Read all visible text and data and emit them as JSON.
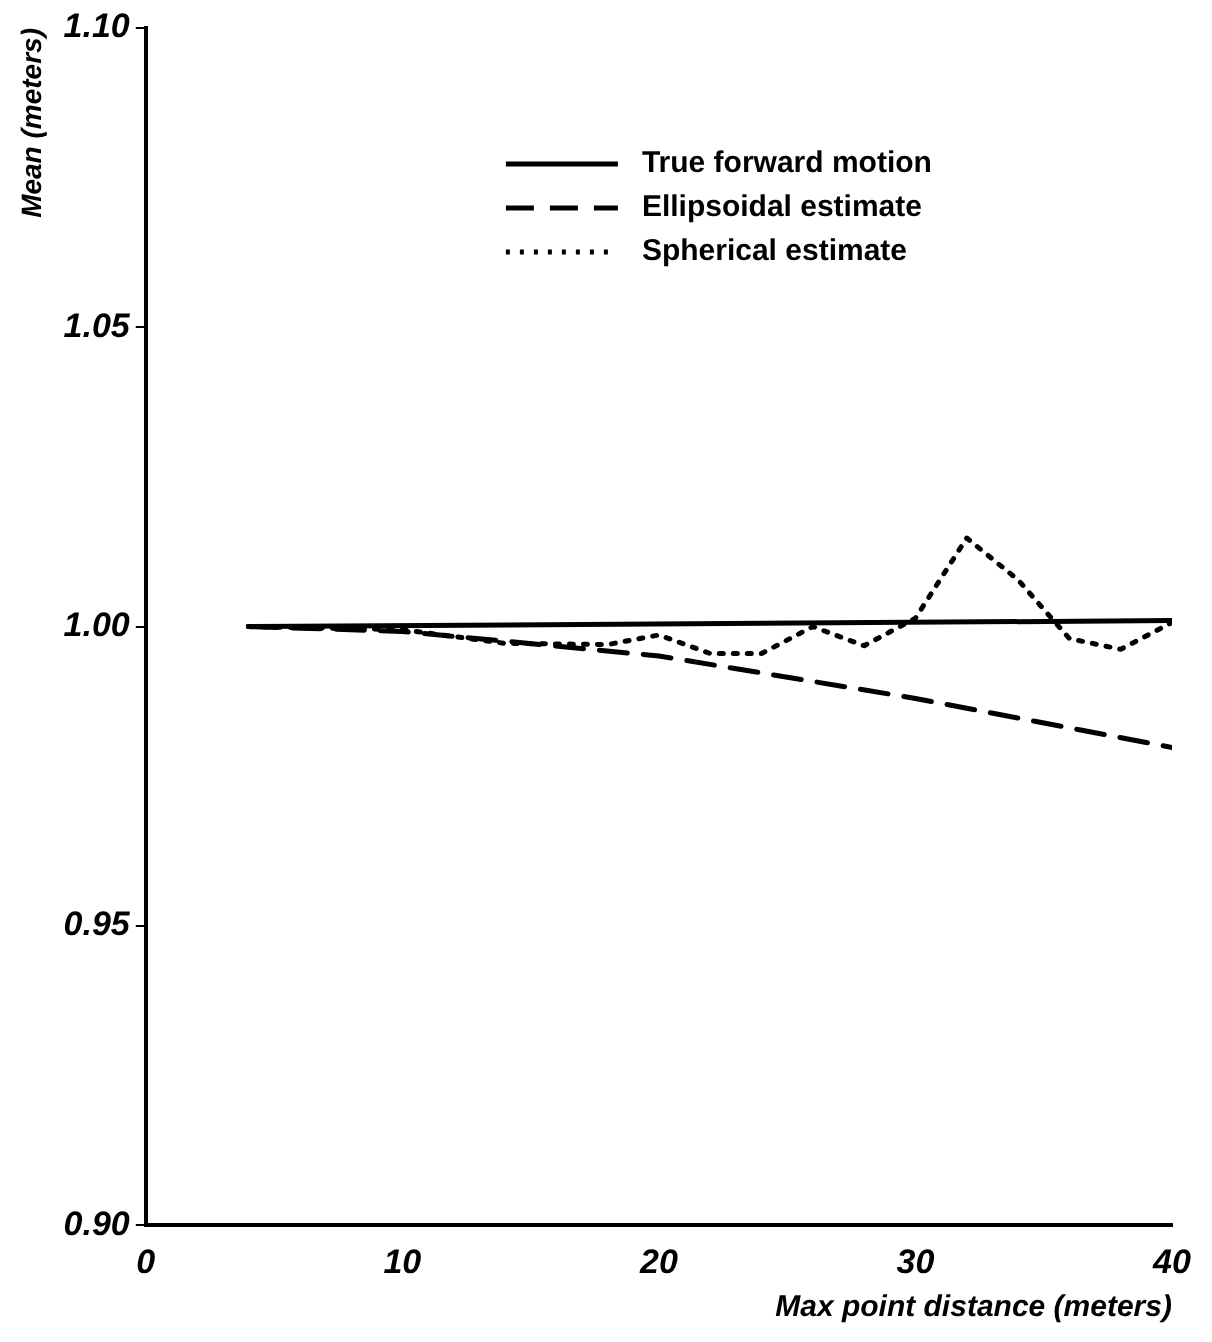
{
  "chart_data": {
    "type": "line",
    "xlabel": "Max point distance (meters)",
    "ylabel": "Mean (meters)",
    "xlim": [
      0,
      40
    ],
    "xticks": [
      0,
      10,
      20,
      30,
      40
    ],
    "ylim": [
      0.9,
      1.1
    ],
    "yticks": [
      {
        "value": 0.9,
        "label": "0.90"
      },
      {
        "value": 0.95,
        "label": "0.95"
      },
      {
        "value": 1.0,
        "label": "1.00"
      },
      {
        "value": 1.05,
        "label": "1.05"
      },
      {
        "value": 1.1,
        "label": "1.10"
      }
    ],
    "grid": false,
    "legend": "top",
    "marker": "none",
    "series": [
      {
        "name": "True forward motion",
        "color": "#000000",
        "line_style": "solid",
        "x": [
          4,
          40
        ],
        "values": [
          1.0,
          1.001
        ]
      },
      {
        "name": "Ellipsoidal estimate",
        "color": "#000000",
        "line_style": "dashed",
        "x": [
          4,
          10,
          20,
          30,
          40
        ],
        "values": [
          1.0,
          0.9992,
          0.9951,
          0.988,
          0.9798
        ]
      },
      {
        "name": "Spherical estimate",
        "color": "#000000",
        "line_style": "dotted",
        "x": [
          4,
          10,
          14,
          18,
          20,
          22,
          24,
          26,
          28,
          30,
          32,
          34,
          36,
          38,
          40
        ],
        "values": [
          1.0,
          0.9995,
          0.9972,
          0.997,
          0.9986,
          0.9955,
          0.9955,
          1.0,
          0.9968,
          1.0014,
          1.0148,
          1.0078,
          0.998,
          0.9962,
          1.0007
        ]
      }
    ]
  }
}
